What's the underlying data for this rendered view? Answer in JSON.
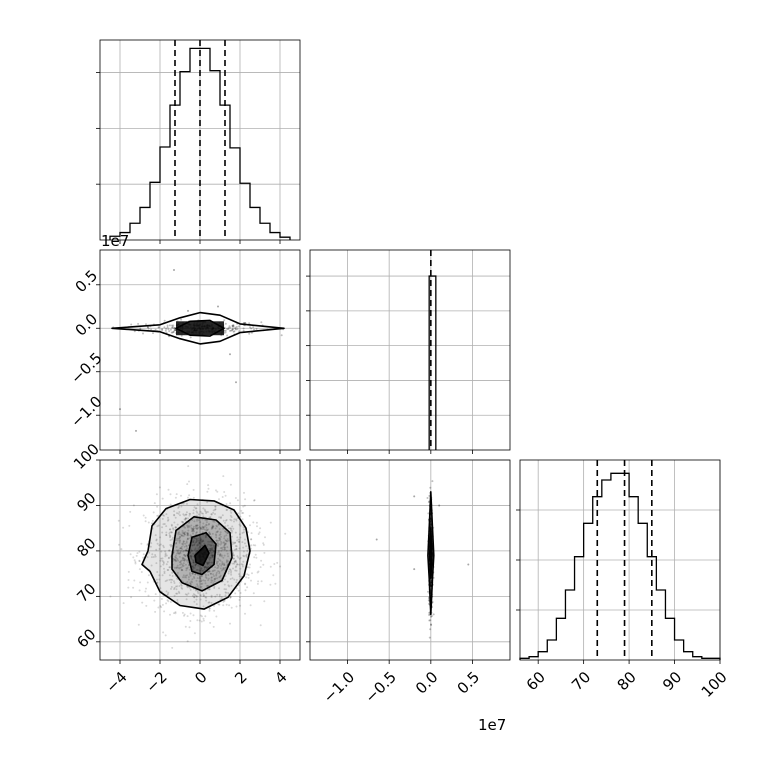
{
  "chart_data": {
    "type": "corner",
    "colors": {
      "line": "#000000",
      "grid": "#b0b0b0",
      "scatter": "#000000"
    },
    "grid": true,
    "offset_labels": {
      "row2_y": "1e7",
      "col2_x": "1e7"
    },
    "quantile_lines": {
      "param1": [
        -1.25,
        0.0,
        1.25
      ],
      "param2": [
        0.0
      ],
      "param3": [
        73.0,
        79.0,
        85.0
      ]
    },
    "axes": {
      "param1": {
        "range": [
          -5,
          5
        ],
        "ticks": [
          -4,
          -2,
          0,
          2,
          4
        ],
        "tick_labels": [
          "−4",
          "−2",
          "0",
          "2",
          "4"
        ]
      },
      "param2_x": {
        "range": [
          -1.45,
          0.95
        ],
        "ticks": [
          -1.0,
          -0.5,
          0.0,
          0.5
        ],
        "tick_labels": [
          "−1.0",
          "−0.5",
          "0.0",
          "0.5"
        ],
        "scale": "1e7"
      },
      "param2_y": {
        "range": [
          -1.4,
          0.9
        ],
        "ticks": [
          -1.0,
          -0.5,
          0.0,
          0.5
        ],
        "tick_labels": [
          "−1.0",
          "−0.5",
          "0.0",
          "0.5"
        ],
        "scale": "1e7"
      },
      "param3": {
        "range": [
          56,
          100
        ],
        "ticks_x": [
          60,
          70,
          80,
          90,
          100
        ],
        "ticks_y": [
          60,
          70,
          80,
          90,
          100
        ],
        "tick_labels": [
          "60",
          "70",
          "80",
          "90",
          "100"
        ]
      }
    },
    "hist_param1": {
      "edges": [
        -4.5,
        -4.0,
        -3.5,
        -3.0,
        -2.5,
        -2.0,
        -1.5,
        -1.0,
        -0.5,
        0.0,
        0.5,
        1.0,
        1.5,
        2.0,
        2.5,
        3.0,
        3.5,
        4.0,
        4.5
      ],
      "counts": [
        4,
        8,
        18,
        35,
        62,
        100,
        145,
        181,
        206,
        206,
        182,
        145,
        99,
        61,
        35,
        18,
        8,
        3
      ],
      "ylim": [
        0,
        215
      ],
      "yticks": [
        60,
        120,
        180
      ]
    },
    "hist_param2": {
      "edges": [
        -0.02,
        0.02,
        0.06
      ],
      "counts": [
        1,
        1
      ],
      "ylim": [
        0,
        1.15
      ],
      "yticks": [
        0.2,
        0.4,
        0.6,
        0.8,
        1.0
      ]
    },
    "hist_param3": {
      "edges": [
        56,
        58,
        60,
        62,
        64,
        66,
        68,
        70,
        72,
        74,
        76,
        78,
        80,
        82,
        84,
        86,
        88,
        90,
        92,
        94,
        96,
        98,
        100
      ],
      "counts": [
        1,
        2,
        5,
        12,
        25,
        42,
        62,
        82,
        98,
        108,
        112,
        112,
        98,
        82,
        62,
        42,
        25,
        12,
        5,
        2,
        1,
        1
      ],
      "ylim": [
        0,
        120
      ],
      "yticks": [
        30,
        60,
        90
      ]
    },
    "contour_param1_param3": [
      {
        "level": "outer",
        "points": [
          [
            -2.6,
            80
          ],
          [
            -2.4,
            85.5
          ],
          [
            -1.7,
            89.3
          ],
          [
            -0.5,
            91.3
          ],
          [
            0.7,
            91.0
          ],
          [
            1.7,
            89.0
          ],
          [
            2.3,
            85.0
          ],
          [
            2.5,
            80
          ],
          [
            2.2,
            74.5
          ],
          [
            1.4,
            69.8
          ],
          [
            0.2,
            67.2
          ],
          [
            -1.0,
            68.0
          ],
          [
            -2.0,
            71.0
          ],
          [
            -2.5,
            75.5
          ],
          [
            -2.9,
            77.0
          ]
        ]
      },
      {
        "level": "middle",
        "points": [
          [
            -1.4,
            79
          ],
          [
            -1.2,
            84.5
          ],
          [
            -0.3,
            87.5
          ],
          [
            0.8,
            86.8
          ],
          [
            1.5,
            84.0
          ],
          [
            1.6,
            78.5
          ],
          [
            1.1,
            73.5
          ],
          [
            0.1,
            71.2
          ],
          [
            -0.9,
            73.0
          ],
          [
            -1.4,
            76.0
          ]
        ]
      },
      {
        "level": "inner",
        "points": [
          [
            -0.6,
            79
          ],
          [
            -0.4,
            83.0
          ],
          [
            0.3,
            84.0
          ],
          [
            0.8,
            81.5
          ],
          [
            0.7,
            77.0
          ],
          [
            0.1,
            74.8
          ],
          [
            -0.4,
            75.5
          ]
        ]
      },
      {
        "level": "core",
        "points": [
          [
            -0.25,
            79
          ],
          [
            0.25,
            81.2
          ],
          [
            0.45,
            79.5
          ],
          [
            0.15,
            76.8
          ],
          [
            -0.2,
            77.5
          ]
        ]
      }
    ],
    "contour_param1_param2": [
      {
        "level": "outer",
        "points": [
          [
            -4.4,
            0
          ],
          [
            -2.0,
            0.04
          ],
          [
            -1.0,
            0.12
          ],
          [
            0.0,
            0.18
          ],
          [
            1.0,
            0.15
          ],
          [
            2.0,
            0.05
          ],
          [
            4.2,
            0
          ],
          [
            2.0,
            -0.05
          ],
          [
            1.0,
            -0.15
          ],
          [
            0.0,
            -0.18
          ],
          [
            -1.0,
            -0.12
          ],
          [
            -2.0,
            -0.04
          ]
        ]
      },
      {
        "level": "inner",
        "points": [
          [
            -1.2,
            0
          ],
          [
            -0.5,
            0.08
          ],
          [
            0.5,
            0.09
          ],
          [
            1.2,
            0
          ],
          [
            0.5,
            -0.09
          ],
          [
            -0.5,
            -0.08
          ]
        ]
      }
    ],
    "contour_param2_param3": [
      {
        "level": "outer",
        "points": [
          [
            0.0,
            66
          ],
          [
            0.02,
            74
          ],
          [
            0.035,
            79
          ],
          [
            0.02,
            85
          ],
          [
            0.0,
            93
          ],
          [
            -0.02,
            85
          ],
          [
            -0.035,
            79
          ],
          [
            -0.02,
            74
          ]
        ]
      },
      {
        "level": "inner",
        "points": [
          [
            0.0,
            74
          ],
          [
            0.015,
            79
          ],
          [
            0.0,
            85
          ],
          [
            -0.015,
            79
          ]
        ]
      }
    ]
  }
}
